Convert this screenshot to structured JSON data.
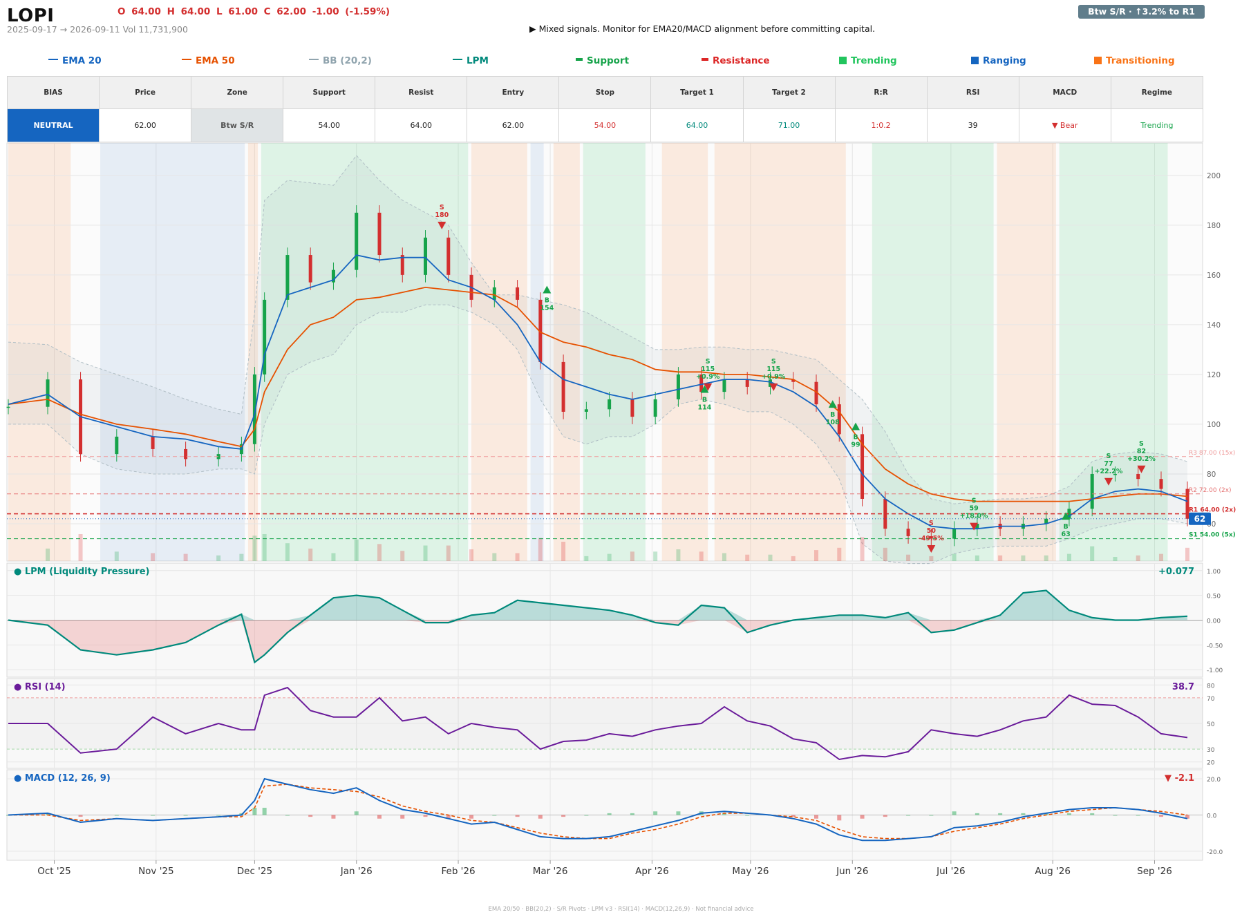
{
  "header": {
    "ticker": "LOPI",
    "ohlc": "O 64.00   H 64.00   L 61.00   C 62.00   -1.00  (-1.59%)",
    "date_range": "2025-09-17 → 2026-09-11   Vol 11,731,900",
    "signal": "▶  Mixed signals. Monitor for EMA20/MACD alignment before committing capital.",
    "badge": "Btw S/R  ·  ↑3.2% to R1"
  },
  "legend": [
    {
      "label": "EMA 20",
      "color": "#1565c0",
      "kind": "line"
    },
    {
      "label": "EMA 50",
      "color": "#e65100",
      "kind": "line"
    },
    {
      "label": "BB (20,2)",
      "color": "#90a4ae",
      "kind": "line"
    },
    {
      "label": "LPM",
      "color": "#00897b",
      "kind": "line"
    },
    {
      "label": "Support",
      "color": "#16a34a",
      "kind": "bar"
    },
    {
      "label": "Resistance",
      "color": "#dc2626",
      "kind": "bar"
    },
    {
      "label": "Trending",
      "color": "#22c55e",
      "kind": "box"
    },
    {
      "label": "Ranging",
      "color": "#1565c0",
      "kind": "box"
    },
    {
      "label": "Transitioning",
      "color": "#f97316",
      "kind": "box"
    }
  ],
  "summary": {
    "headers": [
      "BIAS",
      "Price",
      "Zone",
      "Support",
      "Resist",
      "Entry",
      "Stop",
      "Target 1",
      "Target 2",
      "R:R",
      "RSI",
      "MACD",
      "Regime"
    ],
    "values": [
      "NEUTRAL",
      "62.00",
      "Btw S/R",
      "54.00",
      "64.00",
      "62.00",
      "54.00",
      "64.00",
      "71.00",
      "1:0.2",
      "39",
      "▼ Bear",
      "Trending"
    ],
    "colors": {
      "bias_bg": "#1565c0",
      "zone_bg": "#e0e4e6",
      "stop": "#d32f2f",
      "target1": "#00897b",
      "target2": "#00897b",
      "rr": "#d32f2f",
      "macd": "#d32f2f",
      "regime": "#16a34a"
    }
  },
  "chart_data": [
    {
      "type": "candlestick",
      "title": "",
      "x_ticks": [
        "Oct '25",
        "Nov '25",
        "Dec '25",
        "Jan '26",
        "Feb '26",
        "Mar '26",
        "Apr '26",
        "May '26",
        "Jun '26",
        "Jul '26",
        "Aug '26",
        "Sep '26"
      ],
      "y_ticks": [
        60,
        80,
        100,
        120,
        140,
        160,
        180,
        200
      ],
      "ylim": [
        45,
        213
      ],
      "x": [
        "2025-09-17",
        "2025-09-29",
        "2025-10-09",
        "2025-10-20",
        "2025-10-31",
        "2025-11-10",
        "2025-11-20",
        "2025-11-27",
        "2025-12-01",
        "2025-12-04",
        "2025-12-11",
        "2025-12-18",
        "2025-12-25",
        "2026-01-01",
        "2026-01-08",
        "2026-01-15",
        "2026-01-22",
        "2026-01-29",
        "2026-02-05",
        "2026-02-12",
        "2026-02-19",
        "2026-02-26",
        "2026-03-05",
        "2026-03-12",
        "2026-03-19",
        "2026-03-26",
        "2026-04-02",
        "2026-04-09",
        "2026-04-16",
        "2026-04-23",
        "2026-04-30",
        "2026-05-07",
        "2026-05-14",
        "2026-05-21",
        "2026-05-28",
        "2026-06-04",
        "2026-06-11",
        "2026-06-18",
        "2026-06-25",
        "2026-07-02",
        "2026-07-09",
        "2026-07-16",
        "2026-07-23",
        "2026-07-30",
        "2026-08-06",
        "2026-08-13",
        "2026-08-20",
        "2026-08-27",
        "2026-09-03",
        "2026-09-11"
      ],
      "close": [
        107,
        118,
        88,
        95,
        90,
        86,
        88,
        92,
        120,
        150,
        168,
        157,
        162,
        185,
        168,
        160,
        175,
        160,
        150,
        155,
        150,
        125,
        105,
        106,
        110,
        103,
        110,
        120,
        113,
        118,
        115,
        118,
        117,
        108,
        96,
        70,
        58,
        55,
        54,
        58,
        60,
        58,
        60,
        62,
        66,
        80,
        80,
        78,
        74,
        62
      ],
      "ema20": [
        108,
        112,
        103,
        99,
        95,
        94,
        91,
        90,
        104,
        128,
        152,
        155,
        158,
        168,
        166,
        167,
        167,
        158,
        155,
        150,
        140,
        125,
        118,
        115,
        112,
        110,
        112,
        114,
        116,
        118,
        118,
        117,
        113,
        107,
        95,
        80,
        70,
        64,
        59,
        58,
        58,
        59,
        59,
        60,
        63,
        70,
        73,
        74,
        73,
        69
      ],
      "ema50": [
        108,
        110,
        104,
        100,
        98,
        96,
        93,
        91,
        98,
        113,
        130,
        140,
        143,
        150,
        151,
        153,
        155,
        154,
        153,
        152,
        147,
        137,
        133,
        131,
        128,
        126,
        122,
        121,
        121,
        120,
        120,
        119,
        118,
        113,
        105,
        92,
        82,
        76,
        72,
        70,
        69,
        69,
        69,
        69,
        69,
        70,
        71,
        72,
        72,
        71
      ],
      "bb_upper": [
        133,
        132,
        125,
        120,
        115,
        110,
        106,
        104,
        145,
        190,
        198,
        197,
        196,
        208,
        198,
        190,
        185,
        180,
        165,
        152,
        152,
        150,
        148,
        145,
        140,
        135,
        130,
        130,
        131,
        131,
        130,
        130,
        128,
        126,
        118,
        110,
        97,
        80,
        70,
        68,
        69,
        70,
        70,
        71,
        75,
        85,
        88,
        89,
        88,
        85
      ],
      "bb_lower": [
        100,
        100,
        88,
        82,
        80,
        80,
        82,
        82,
        80,
        100,
        120,
        125,
        128,
        140,
        145,
        145,
        148,
        148,
        145,
        140,
        130,
        110,
        95,
        92,
        95,
        95,
        100,
        108,
        110,
        108,
        105,
        105,
        100,
        92,
        78,
        52,
        45,
        44,
        44,
        48,
        50,
        51,
        51,
        51,
        54,
        58,
        60,
        62,
        62,
        60
      ],
      "levels": [
        {
          "label": "R3 87.00 (15x)",
          "value": 87,
          "color": "#ef9a9a"
        },
        {
          "label": "R2 72.00 (2x)",
          "value": 72,
          "color": "#e57373"
        },
        {
          "label": "R1 64.00 (2x)",
          "value": 64,
          "color": "#d32f2f"
        },
        {
          "label": "S1 54.00 (5x)",
          "value": 54,
          "color": "#16a34a"
        }
      ],
      "last_price": 62,
      "signals": [
        {
          "side": "S",
          "date": "2026-01-27",
          "price": 180,
          "text": "S\n180"
        },
        {
          "side": "B",
          "date": "2026-02-28",
          "price": 154,
          "text": "B\n154"
        },
        {
          "side": "B",
          "date": "2026-04-17",
          "price": 114,
          "text": "B\n114"
        },
        {
          "side": "S",
          "date": "2026-04-18",
          "price": 115,
          "text": "S\n115\n+0.9%"
        },
        {
          "side": "S",
          "date": "2026-05-08",
          "price": 115,
          "text": "S\n115\n+0.9%"
        },
        {
          "side": "B",
          "date": "2026-05-26",
          "price": 108,
          "text": "B\n108"
        },
        {
          "side": "B",
          "date": "2026-06-02",
          "price": 99,
          "text": "B\n99"
        },
        {
          "side": "S",
          "date": "2026-06-25",
          "price": 50,
          "text": "S\n50\n-49.5%"
        },
        {
          "side": "S",
          "date": "2026-07-08",
          "price": 59,
          "text": "S\n59\n+18.0%"
        },
        {
          "side": "B",
          "date": "2026-08-05",
          "price": 63,
          "text": "B\n63"
        },
        {
          "side": "S",
          "date": "2026-08-18",
          "price": 77,
          "text": "S\n77\n+22.2%"
        },
        {
          "side": "S",
          "date": "2026-08-28",
          "price": 82,
          "text": "S\n82\n+30.2%"
        }
      ],
      "regimes": [
        {
          "start": "2025-09-17",
          "end": "2025-10-06",
          "kind": "transitioning"
        },
        {
          "start": "2025-10-15",
          "end": "2025-11-28",
          "kind": "ranging"
        },
        {
          "start": "2025-11-29",
          "end": "2025-12-02",
          "kind": "transitioning"
        },
        {
          "start": "2025-12-03",
          "end": "2026-02-04",
          "kind": "trending"
        },
        {
          "start": "2026-02-05",
          "end": "2026-02-22",
          "kind": "transitioning"
        },
        {
          "start": "2026-02-23",
          "end": "2026-02-27",
          "kind": "ranging"
        },
        {
          "start": "2026-03-02",
          "end": "2026-03-10",
          "kind": "transitioning"
        },
        {
          "start": "2026-03-11",
          "end": "2026-03-30",
          "kind": "trending"
        },
        {
          "start": "2026-04-04",
          "end": "2026-04-18",
          "kind": "transitioning"
        },
        {
          "start": "2026-04-20",
          "end": "2026-05-30",
          "kind": "transitioning"
        },
        {
          "start": "2026-06-07",
          "end": "2026-07-14",
          "kind": "trending"
        },
        {
          "start": "2026-07-15",
          "end": "2026-08-02",
          "kind": "transitioning"
        },
        {
          "start": "2026-08-03",
          "end": "2026-09-05",
          "kind": "trending"
        }
      ]
    },
    {
      "type": "area",
      "title": "● LPM (Liquidity Pressure)",
      "last_value": "+0.077",
      "y_ticks": [
        1.0,
        0.5,
        0.0,
        -0.5,
        -1.0
      ],
      "y_tick_labels": [
        "1.00",
        "0.50",
        "0.00",
        "-0.50",
        "-1.00"
      ],
      "ylim": [
        -1.15,
        1.15
      ],
      "values": [
        0.0,
        -0.1,
        -0.6,
        -0.7,
        -0.6,
        -0.45,
        -0.1,
        0.12,
        -0.85,
        -0.7,
        -0.25,
        0.1,
        0.45,
        0.5,
        0.45,
        0.2,
        -0.05,
        -0.05,
        0.1,
        0.15,
        0.4,
        0.35,
        0.3,
        0.25,
        0.2,
        0.1,
        -0.05,
        -0.1,
        0.3,
        0.25,
        -0.25,
        -0.1,
        0.0,
        0.05,
        0.1,
        0.1,
        0.05,
        0.15,
        -0.25,
        -0.2,
        -0.05,
        0.1,
        0.55,
        0.6,
        0.2,
        0.05,
        0.0,
        0.0,
        0.05,
        0.08
      ]
    },
    {
      "type": "line",
      "title": "● RSI (14)",
      "last_value": "38.7",
      "y_ticks": [
        80,
        70,
        50,
        30,
        20
      ],
      "ylim": [
        15,
        85
      ],
      "values": [
        50,
        50,
        27,
        30,
        55,
        42,
        50,
        45,
        45,
        72,
        78,
        60,
        55,
        55,
        70,
        52,
        55,
        42,
        50,
        47,
        45,
        30,
        36,
        37,
        42,
        40,
        45,
        48,
        50,
        63,
        52,
        48,
        38,
        35,
        22,
        25,
        24,
        28,
        45,
        42,
        40,
        45,
        52,
        55,
        72,
        65,
        64,
        55,
        42,
        39
      ]
    },
    {
      "type": "line",
      "title": "● MACD (12, 26, 9)",
      "last_value": "▼ -2.1",
      "y_ticks": [
        20,
        0,
        -20
      ],
      "y_tick_labels": [
        "20.0",
        "0.0",
        "-20.0"
      ],
      "ylim": [
        -25,
        25
      ],
      "macd": [
        0,
        1,
        -4,
        -2,
        -3,
        -2,
        -1,
        0,
        8,
        20,
        17,
        14,
        12,
        15,
        8,
        3,
        1,
        -2,
        -5,
        -4,
        -8,
        -12,
        -13,
        -13,
        -12,
        -9,
        -6,
        -3,
        1,
        2,
        1,
        0,
        -2,
        -5,
        -11,
        -14,
        -14,
        -13,
        -12,
        -7,
        -6,
        -4,
        -1,
        1,
        3,
        4,
        4,
        3,
        1,
        -2
      ],
      "signal": [
        0,
        0,
        -3,
        -2,
        -3,
        -2,
        -1,
        -1,
        4,
        16,
        17,
        15,
        14,
        13,
        10,
        5,
        2,
        0,
        -3,
        -4,
        -7,
        -10,
        -12,
        -13,
        -13,
        -10,
        -8,
        -5,
        -1,
        1,
        1,
        0,
        -1,
        -3,
        -8,
        -12,
        -13,
        -13,
        -12,
        -9,
        -7,
        -5,
        -2,
        0,
        2,
        3,
        4,
        3,
        2,
        0
      ]
    }
  ],
  "footer": "EMA 20/50  ·  BB(20,2)  ·  S/R Pivots  ·  LPM v3  ·  RSI(14)  ·  MACD(12,26,9)  ·  Not financial advice"
}
